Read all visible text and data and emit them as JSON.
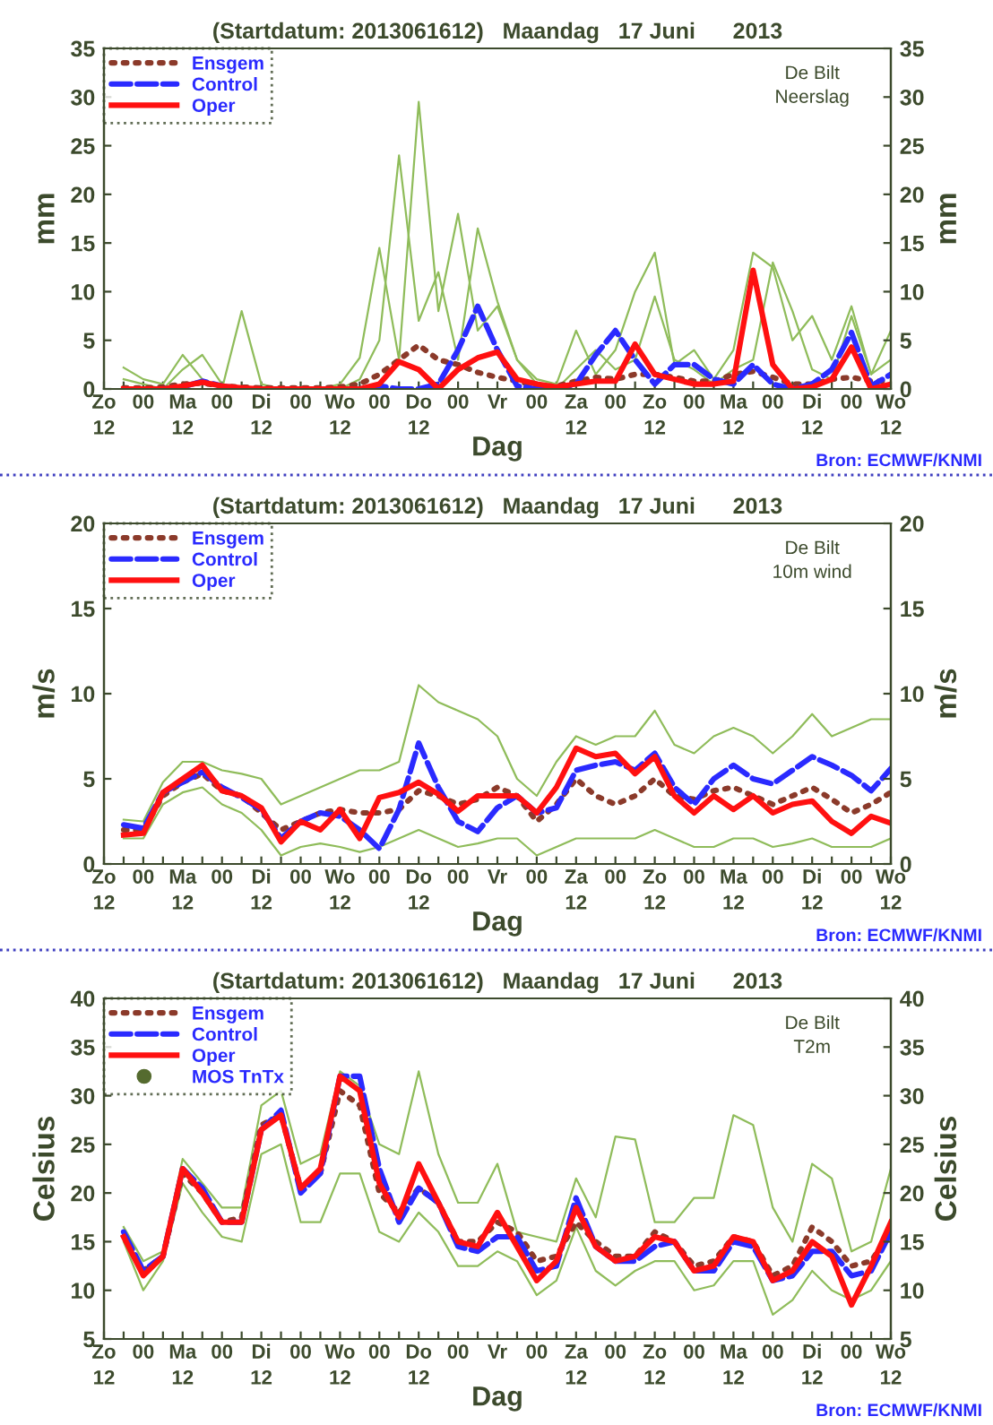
{
  "chart_data": [
    {
      "type": "line",
      "title": "(Startdatum: 2013061612)   Maandag   17 Juni      2013",
      "xlabel": "Dag",
      "ylabel": "mm",
      "y2label": "mm",
      "annotations": [
        "De Bilt",
        "Neerslag",
        "Bron: ECMWF/KNMI"
      ],
      "categories": [
        "Zo\n12",
        null,
        "00",
        null,
        "Ma\n12",
        null,
        "00",
        null,
        "Di\n12",
        null,
        "00",
        null,
        "Wo\n12",
        null,
        "00",
        null,
        "Do\n12",
        null,
        "00",
        null,
        "Vr",
        null,
        "00",
        null,
        "Za\n12",
        null,
        "00",
        null,
        "Zo\n12",
        null,
        "00",
        null,
        "Ma\n12",
        null,
        "00",
        null,
        "Di\n12",
        null,
        "00",
        null,
        "Wo\n12"
      ],
      "ylim": [
        0,
        35
      ],
      "yticks": [
        0,
        5,
        10,
        15,
        20,
        25,
        30,
        35
      ],
      "y2lim": [
        0,
        35
      ],
      "y2ticks": [
        0,
        5,
        10,
        15,
        20,
        25,
        30,
        35
      ],
      "legend": "top left",
      "grid": false,
      "series": [
        {
          "color": "#8fbc5a",
          "line_style": "solid",
          "values": [
            null,
            2.2,
            1,
            0.5,
            3.5,
            1,
            0,
            8,
            0.5,
            0,
            0,
            0,
            0.5,
            3.2,
            14.5,
            3,
            29.5,
            8,
            18,
            6,
            8.5,
            3,
            1,
            0.5,
            6,
            1.5,
            4,
            10,
            14,
            2.5,
            4,
            1,
            4,
            14,
            12.5,
            5,
            7.5,
            3,
            8.5,
            1.5,
            6
          ]
        },
        {
          "color": "#8fbc5a",
          "line_style": "solid",
          "values": [
            null,
            1,
            0.5,
            0,
            2,
            3.5,
            0.5,
            0,
            0,
            0,
            0,
            0,
            0,
            1,
            5,
            24,
            7,
            12,
            3,
            16.5,
            9,
            3,
            0.5,
            0,
            2,
            4,
            2,
            3,
            9.5,
            3,
            2,
            0.5,
            2,
            3,
            13,
            8,
            2,
            1,
            7.5,
            1.5,
            3
          ]
        },
        {
          "name": "Ensgem",
          "color": "#8b3a2a",
          "line_style": "dotted",
          "values": [
            null,
            0.1,
            0.1,
            0.2,
            0.5,
            0.6,
            0.3,
            0.2,
            0.1,
            0.1,
            0.1,
            0.1,
            0.2,
            0.5,
            1.5,
            3,
            4.5,
            3,
            2.5,
            1.7,
            1.2,
            0.8,
            0.3,
            0.3,
            0.8,
            1.2,
            1,
            1.5,
            1.5,
            1.2,
            0.8,
            0.8,
            1.5,
            1.8,
            1.2,
            0.5,
            0.5,
            1,
            1.2,
            0.8,
            0.8
          ]
        },
        {
          "name": "Control",
          "color": "#2a2aff",
          "line_style": "dashed",
          "values": [
            null,
            null,
            null,
            0,
            0.2,
            0.8,
            0.3,
            0,
            0,
            0,
            0,
            0,
            0,
            0,
            0.3,
            0,
            0,
            0.5,
            4,
            8.5,
            4,
            0.3,
            0,
            0,
            0.5,
            3.5,
            6,
            3,
            0.5,
            2.5,
            2.5,
            1,
            0.5,
            2.5,
            0.5,
            0,
            0.5,
            2,
            5.8,
            0.3,
            1.5
          ]
        },
        {
          "name": "Oper",
          "color": "#ff1010",
          "line_style": "solid",
          "values": [
            null,
            0,
            0,
            0,
            0.3,
            0.7,
            0.3,
            0.1,
            0,
            0,
            0,
            0,
            0,
            0,
            0.5,
            2.8,
            2,
            0,
            2,
            3.2,
            3.8,
            1,
            0.5,
            0.2,
            0.5,
            0.8,
            0.8,
            4.6,
            1.5,
            1,
            0.5,
            0.5,
            0.8,
            12.2,
            2.5,
            0,
            0.2,
            1,
            4.3,
            0,
            0.5
          ]
        }
      ]
    },
    {
      "type": "line",
      "title": "(Startdatum: 2013061612)   Maandag   17 Juni      2013",
      "xlabel": "Dag",
      "ylabel": "m/s",
      "y2label": "m/s",
      "annotations": [
        "De Bilt",
        "10m wind",
        "Bron: ECMWF/KNMI"
      ],
      "categories": [
        "Zo\n12",
        null,
        "00",
        null,
        "Ma\n12",
        null,
        "00",
        null,
        "Di\n12",
        null,
        "00",
        null,
        "Wo\n12",
        null,
        "00",
        null,
        "Do\n12",
        null,
        "00",
        null,
        "Vr",
        null,
        "00",
        null,
        "Za\n12",
        null,
        "00",
        null,
        "Zo\n12",
        null,
        "00",
        null,
        "Ma\n12",
        null,
        "00",
        null,
        "Di\n12",
        null,
        "00",
        null,
        "Wo\n12"
      ],
      "ylim": [
        0,
        20
      ],
      "yticks": [
        0,
        5,
        10,
        15,
        20
      ],
      "y2lim": [
        0,
        20
      ],
      "y2ticks": [
        0,
        5,
        10,
        15,
        20
      ],
      "legend": "top left",
      "grid": false,
      "series": [
        {
          "color": "#8fbc5a",
          "line_style": "solid",
          "values": [
            null,
            2.6,
            2.5,
            4.8,
            6,
            6,
            5.5,
            5.3,
            5,
            3.5,
            4,
            4.5,
            5,
            5.5,
            5.5,
            6,
            10.5,
            9.5,
            9,
            8.5,
            7.5,
            5,
            4,
            6,
            7.5,
            7,
            7.5,
            7.5,
            9,
            7,
            6.5,
            7.5,
            8,
            7.5,
            6.5,
            7.5,
            8.8,
            7.5,
            8,
            8.5,
            8.5
          ]
        },
        {
          "color": "#8fbc5a",
          "line_style": "solid",
          "values": [
            null,
            1.5,
            1.5,
            3.5,
            4.2,
            4.5,
            3.5,
            3,
            2,
            0.5,
            1,
            1.2,
            1,
            0.7,
            1,
            1.5,
            2,
            1.5,
            1,
            1.2,
            1.5,
            1.5,
            0.5,
            1,
            1.5,
            1.5,
            1.5,
            1.5,
            2,
            1.5,
            1,
            1,
            1.5,
            1.5,
            1,
            1.2,
            1.5,
            1,
            1,
            1,
            1.5
          ]
        },
        {
          "name": "Ensgem",
          "color": "#8b3a2a",
          "line_style": "dotted",
          "values": [
            null,
            2,
            2,
            4,
            4.8,
            5.3,
            4.3,
            4,
            3,
            2,
            2.5,
            3,
            3.2,
            3,
            3,
            3.2,
            4.3,
            4,
            3.5,
            3.8,
            4.5,
            4,
            2.5,
            3.5,
            5,
            4,
            3.5,
            4,
            5,
            4,
            3.8,
            4.3,
            4.5,
            4,
            3.5,
            4,
            4.5,
            3.8,
            3,
            3.5,
            4.2
          ]
        },
        {
          "name": "Control",
          "color": "#2a2aff",
          "line_style": "dashed",
          "values": [
            null,
            2.3,
            2.1,
            4.2,
            4.8,
            5.4,
            4.5,
            3.9,
            3.2,
            1.5,
            2.5,
            3,
            2.8,
            2,
            0.9,
            3.2,
            7.1,
            4.5,
            2.5,
            1.9,
            3.3,
            4,
            3,
            3.3,
            5.5,
            5.8,
            6,
            5.5,
            6.5,
            4.5,
            3.5,
            5,
            5.8,
            5,
            4.7,
            5.5,
            6.3,
            5.8,
            5.2,
            4.3,
            5.6
          ]
        },
        {
          "name": "Oper",
          "color": "#ff1010",
          "line_style": "solid",
          "values": [
            null,
            1.7,
            1.8,
            4.2,
            5,
            5.8,
            4.3,
            4,
            3.3,
            1.3,
            2.5,
            2,
            3.2,
            1.5,
            3.9,
            4.2,
            4.8,
            4.1,
            3.1,
            4,
            4,
            4,
            3,
            4.5,
            6.8,
            6.3,
            6.5,
            5.3,
            6.3,
            4,
            3,
            4,
            3.2,
            4,
            3,
            3.5,
            3.7,
            2.5,
            1.8,
            2.8,
            2.4
          ]
        }
      ]
    },
    {
      "type": "line",
      "title": "(Startdatum: 2013061612)   Maandag   17 Juni      2013",
      "xlabel": "Dag",
      "ylabel": "Celsius",
      "y2label": "Celsius",
      "annotations": [
        "De Bilt",
        "T2m",
        "Bron: ECMWF/KNMI"
      ],
      "categories": [
        "Zo\n12",
        null,
        "00",
        null,
        "Ma\n12",
        null,
        "00",
        null,
        "Di\n12",
        null,
        "00",
        null,
        "Wo\n12",
        null,
        "00",
        null,
        "Do\n12",
        null,
        "00",
        null,
        "Vr",
        null,
        "00",
        null,
        "Za\n12",
        null,
        "00",
        null,
        "Zo\n12",
        null,
        "00",
        null,
        "Ma\n12",
        null,
        "00",
        null,
        "Di\n12",
        null,
        "00",
        null,
        "Wo\n12"
      ],
      "ylim": [
        5,
        40
      ],
      "yticks": [
        5,
        10,
        15,
        20,
        25,
        30,
        35,
        40
      ],
      "y2lim": [
        5,
        40
      ],
      "y2ticks": [
        5,
        10,
        15,
        20,
        25,
        30,
        35,
        40
      ],
      "legend": "top left",
      "grid": false,
      "series": [
        {
          "color": "#8fbc5a",
          "line_style": "solid",
          "values": [
            null,
            16.5,
            13,
            14,
            23.5,
            21,
            18.5,
            18.5,
            29,
            30.5,
            23,
            24,
            32.5,
            31,
            25,
            24,
            32.5,
            24,
            19,
            19,
            23,
            16,
            15.5,
            15,
            21.5,
            17.5,
            25.8,
            25.5,
            17,
            17,
            19.5,
            19.5,
            28,
            27,
            18.5,
            15,
            23,
            21.5,
            14,
            15,
            22.5
          ]
        },
        {
          "color": "#8fbc5a",
          "line_style": "solid",
          "values": [
            null,
            15,
            10,
            13,
            21,
            18,
            15.5,
            15,
            24,
            25,
            17,
            17,
            22,
            22,
            16,
            15,
            18,
            16,
            12.5,
            12.5,
            14,
            13,
            9.5,
            11,
            16.5,
            12,
            10.5,
            12,
            13,
            13,
            10,
            10.5,
            13,
            13,
            7.5,
            9,
            12,
            10,
            9,
            10,
            13
          ]
        },
        {
          "name": "Ensgem",
          "color": "#8b3a2a",
          "line_style": "dotted",
          "values": [
            null,
            null,
            12,
            13.5,
            22,
            20,
            17,
            17.5,
            27,
            28,
            20.5,
            22,
            30.5,
            29,
            20,
            18,
            20.5,
            19,
            15,
            15,
            17,
            16,
            13,
            13.5,
            17,
            15,
            13.5,
            13.5,
            16,
            15,
            12.5,
            13,
            15.5,
            15,
            11.5,
            12.5,
            16.5,
            15,
            12.5,
            13,
            16
          ]
        },
        {
          "name": "Control",
          "color": "#2a2aff",
          "line_style": "dashed",
          "values": [
            null,
            16,
            12,
            13.5,
            22.5,
            20.5,
            17,
            17,
            26.5,
            28.5,
            20,
            22,
            32,
            32,
            22.5,
            17,
            20.5,
            19,
            14.5,
            14,
            15.5,
            15.5,
            12,
            12.5,
            19.5,
            14.5,
            13,
            13,
            14.5,
            15,
            12,
            12,
            15,
            14.5,
            11,
            11.5,
            14,
            14,
            11.5,
            12,
            16
          ]
        },
        {
          "name": "Oper",
          "color": "#ff1010",
          "line_style": "solid",
          "values": [
            null,
            15.5,
            11.5,
            13.5,
            22.5,
            20,
            17,
            17,
            26.5,
            28,
            20.5,
            22.5,
            32,
            30.5,
            21,
            17.5,
            23,
            19,
            15,
            14.5,
            18,
            14.5,
            11,
            13,
            18.5,
            14.5,
            13,
            13.5,
            15.5,
            15,
            12,
            12.5,
            15.5,
            15,
            11,
            12,
            15,
            13.5,
            8.5,
            12.5,
            17
          ]
        },
        {
          "name": "MOS TnTx",
          "type": "scatter",
          "color": "#556b2f",
          "marker": "circle",
          "values": [
            null,
            null,
            null,
            null,
            null,
            null,
            null,
            null,
            null,
            null,
            null,
            null,
            null,
            null,
            null,
            null,
            null,
            null,
            null,
            null,
            null,
            null,
            null,
            null,
            null,
            null,
            null,
            null,
            null,
            null,
            null,
            null,
            null,
            null,
            null,
            null,
            null,
            null,
            null,
            null,
            null
          ]
        }
      ]
    }
  ]
}
